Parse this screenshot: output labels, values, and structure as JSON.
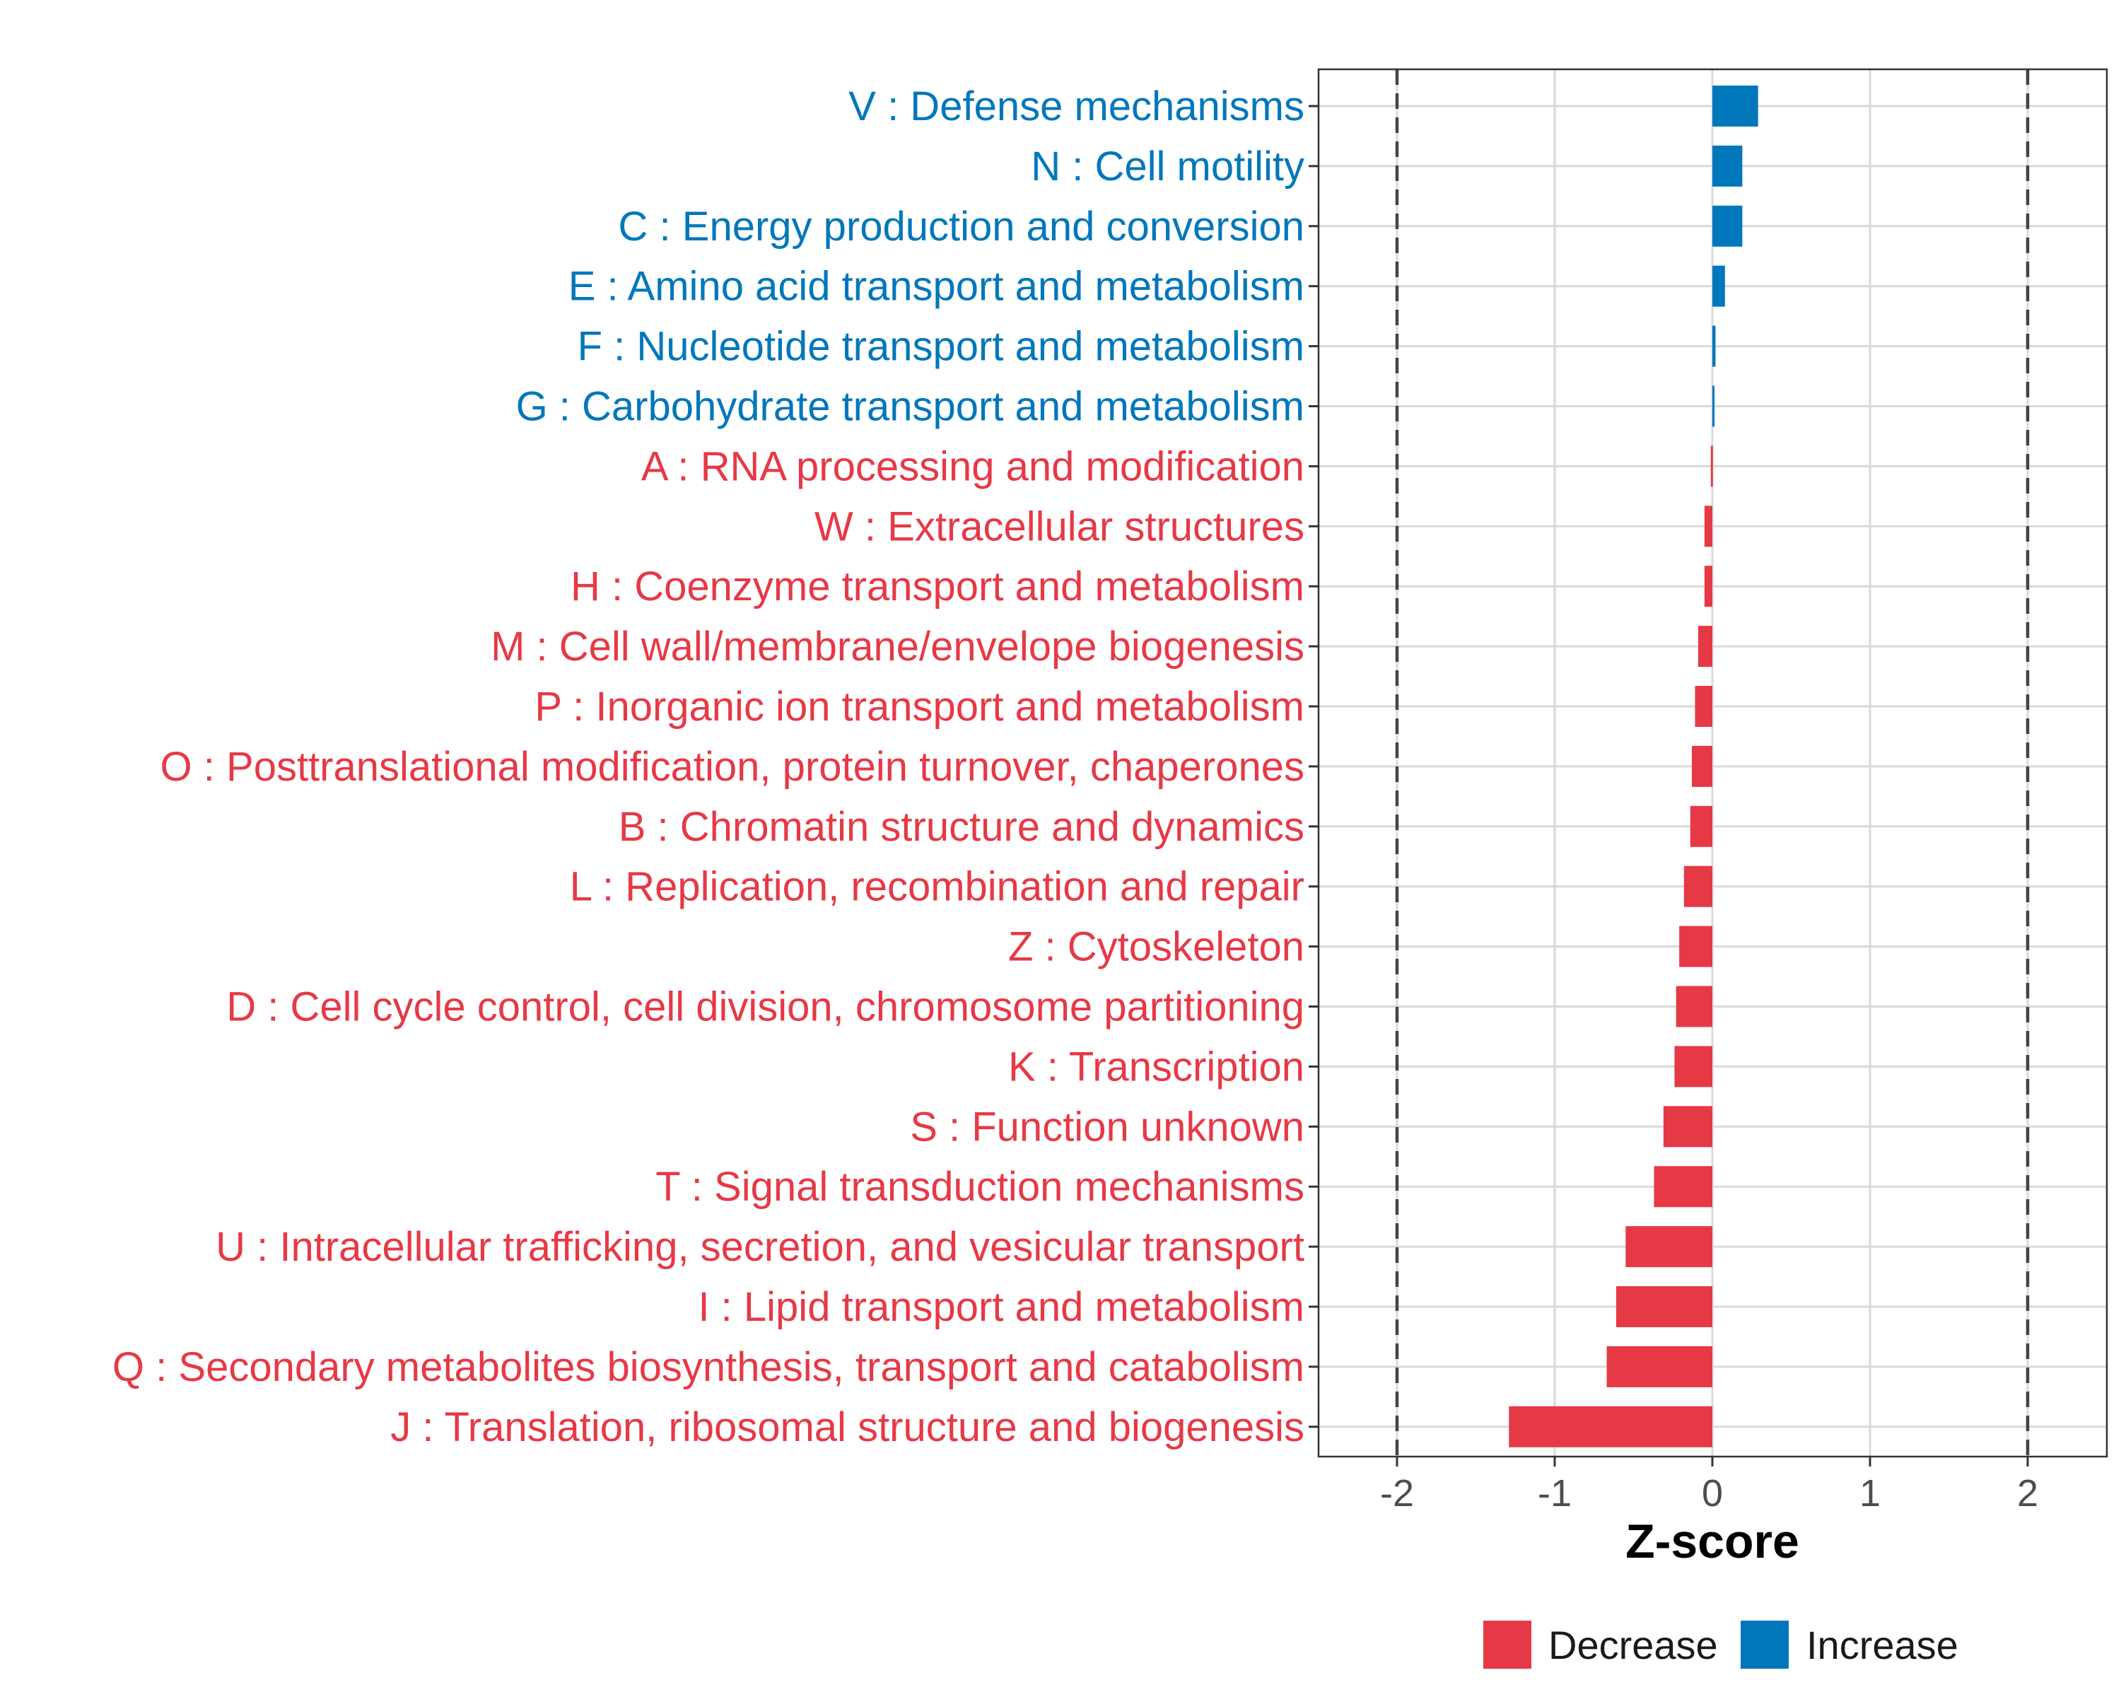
{
  "chart_data": {
    "type": "bar",
    "orientation": "horizontal",
    "title": "",
    "xlabel": "Z-score",
    "ylabel": "",
    "xlim": [
      -2.5,
      2.5
    ],
    "xticks": [
      -2,
      -1,
      0,
      1,
      2
    ],
    "xtick_labels": [
      "-2",
      "-1",
      "0",
      "1",
      "2"
    ],
    "reference_lines": [
      -2,
      2
    ],
    "grid": true,
    "legend_position": "bottom",
    "legend": [
      {
        "name": "Decrease",
        "color": "#E63946"
      },
      {
        "name": "Increase",
        "color": "#0077BB"
      }
    ],
    "categories": [
      "V : Defense mechanisms",
      "N : Cell motility",
      "C : Energy production and conversion",
      "E : Amino acid transport and metabolism",
      "F : Nucleotide transport and metabolism",
      "G : Carbohydrate transport and metabolism",
      "A : RNA processing and modification",
      "W : Extracellular structures",
      "H : Coenzyme transport and metabolism",
      "M : Cell wall/membrane/envelope biogenesis",
      "P : Inorganic ion transport and metabolism",
      "O : Posttranslational modification, protein turnover, chaperones",
      "B : Chromatin structure and dynamics",
      "L : Replication, recombination and repair",
      "Z : Cytoskeleton",
      "D : Cell cycle control, cell division, chromosome partitioning",
      "K : Transcription",
      "S : Function unknown",
      "T : Signal transduction mechanisms",
      "U : Intracellular trafficking, secretion, and vesicular transport",
      "I : Lipid transport and metabolism",
      "Q : Secondary metabolites biosynthesis, transport and catabolism",
      "J : Translation, ribosomal structure and biogenesis"
    ],
    "values": [
      0.29,
      0.19,
      0.19,
      0.08,
      0.02,
      0.01,
      -0.01,
      -0.05,
      -0.05,
      -0.09,
      -0.11,
      -0.13,
      -0.14,
      -0.18,
      -0.21,
      -0.23,
      -0.24,
      -0.31,
      -0.37,
      -0.55,
      -0.61,
      -0.67,
      -1.29
    ],
    "groups": [
      "Increase",
      "Increase",
      "Increase",
      "Increase",
      "Increase",
      "Increase",
      "Decrease",
      "Decrease",
      "Decrease",
      "Decrease",
      "Decrease",
      "Decrease",
      "Decrease",
      "Decrease",
      "Decrease",
      "Decrease",
      "Decrease",
      "Decrease",
      "Decrease",
      "Decrease",
      "Decrease",
      "Decrease",
      "Decrease"
    ]
  }
}
